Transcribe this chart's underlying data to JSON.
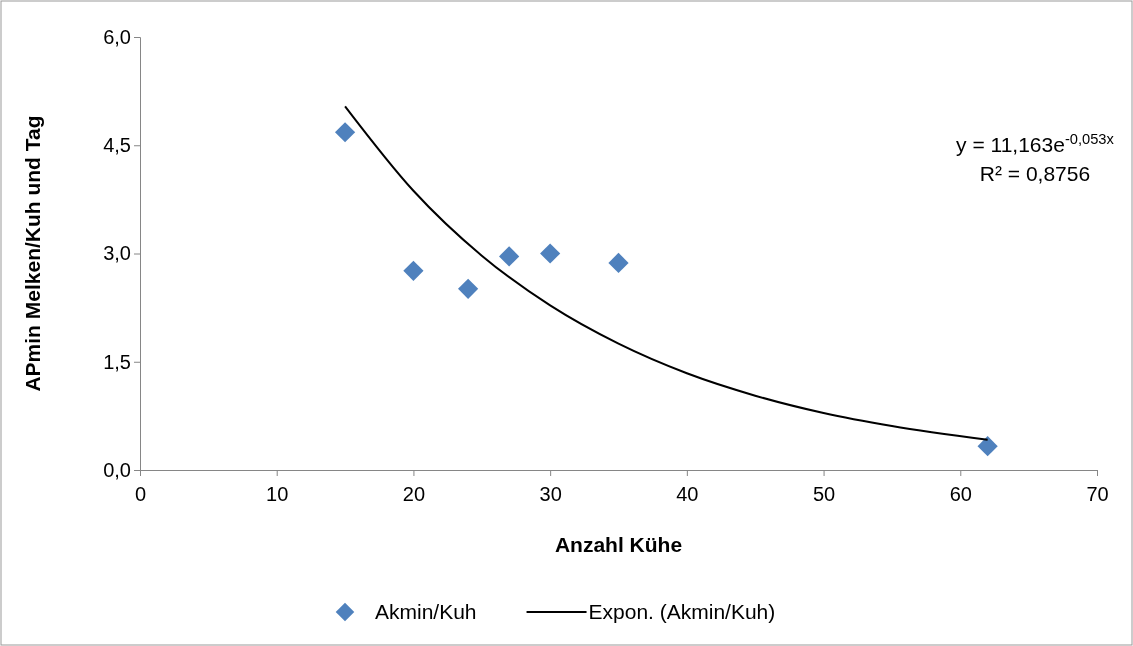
{
  "chart_data": {
    "type": "scatter",
    "xlabel": "Anzahl Kühe",
    "ylabel": "APmin Melken/Kuh und Tag",
    "xlim": [
      0,
      70
    ],
    "xticks": [
      0,
      10,
      20,
      30,
      40,
      50,
      60,
      70
    ],
    "ylim": [
      0,
      6
    ],
    "yticks": [
      {
        "value": 0,
        "label": "0,0"
      },
      {
        "value": 1.5,
        "label": "1,5"
      },
      {
        "value": 3,
        "label": "3,0"
      },
      {
        "value": 4.5,
        "label": "4,5"
      },
      {
        "value": 6,
        "label": "6,0"
      }
    ],
    "grid": false,
    "legend": "bottom",
    "series": [
      {
        "name": "Akmin/Kuh",
        "type": "scatter",
        "marker": "diamond",
        "color": "#4f81bd",
        "x": [
          15,
          20,
          24,
          27,
          30,
          35,
          62
        ],
        "values": [
          4.68,
          2.76,
          2.51,
          2.96,
          3.0,
          2.87,
          0.33
        ]
      },
      {
        "name": "Expon. (Akmin/Kuh)",
        "type": "line",
        "marker": "none",
        "line_style": "solid",
        "color": "#000000",
        "x": [
          15,
          20,
          25,
          30,
          35,
          40,
          45,
          50,
          55,
          62
        ],
        "values": [
          5.04,
          3.87,
          2.97,
          2.28,
          1.75,
          1.34,
          1.03,
          0.79,
          0.61,
          0.42
        ]
      }
    ],
    "annotations": [
      "y = 11,163e$^{-0,053x}$",
      "R² = 0,8756"
    ]
  }
}
